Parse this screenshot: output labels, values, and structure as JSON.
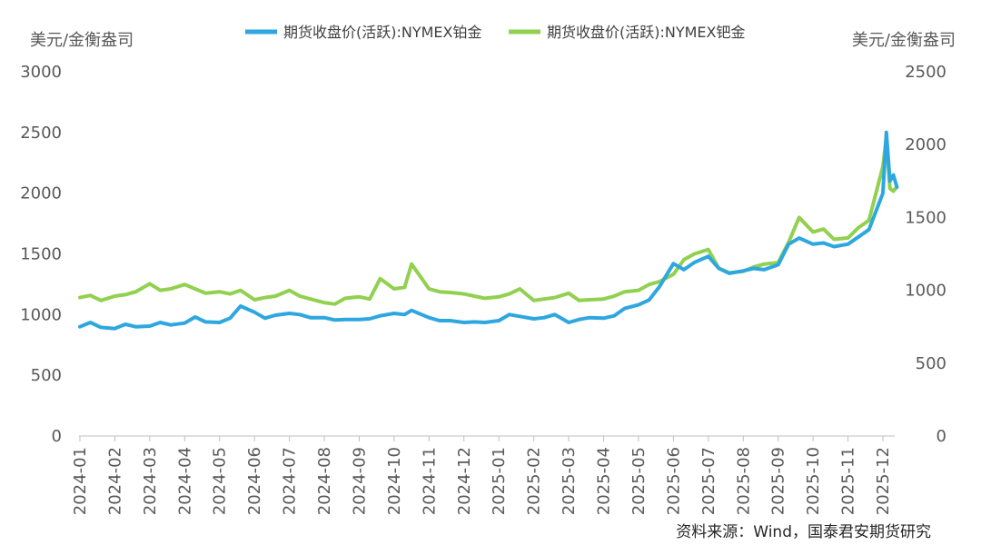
{
  "chart_data": {
    "type": "line",
    "title": "",
    "left_axis_unit": "美元/金衡盎司",
    "right_axis_unit": "美元/金衡盎司",
    "left_ylim": [
      0,
      3000
    ],
    "left_ticks": [
      "0",
      "500",
      "1000",
      "1500",
      "2000",
      "2500",
      "3000"
    ],
    "right_ylim": [
      0,
      2500
    ],
    "right_ticks": [
      "0",
      "500",
      "1000",
      "1500",
      "2000",
      "2500"
    ],
    "x_ticks": [
      "2024-01",
      "2024-02",
      "2024-03",
      "2024-04",
      "2024-05",
      "2024-06",
      "2024-07",
      "2024-08",
      "2024-09",
      "2024-10",
      "2024-11",
      "2024-12",
      "2025-01",
      "2025-02",
      "2025-03",
      "2025-04",
      "2025-05",
      "2025-06",
      "2025-07",
      "2025-08",
      "2025-09",
      "2025-10",
      "2025-11",
      "2025-12"
    ],
    "series": [
      {
        "name": "期货收盘价(活跃):NYMEX铂金",
        "axis": "left",
        "color": "#2ea7e0",
        "points": [
          [
            0,
            900
          ],
          [
            0.3,
            935
          ],
          [
            0.6,
            895
          ],
          [
            1,
            885
          ],
          [
            1.3,
            920
          ],
          [
            1.6,
            900
          ],
          [
            2,
            905
          ],
          [
            2.3,
            935
          ],
          [
            2.6,
            915
          ],
          [
            3,
            930
          ],
          [
            3.3,
            980
          ],
          [
            3.6,
            940
          ],
          [
            4,
            935
          ],
          [
            4.3,
            970
          ],
          [
            4.6,
            1070
          ],
          [
            5,
            1020
          ],
          [
            5.3,
            970
          ],
          [
            5.6,
            995
          ],
          [
            6,
            1010
          ],
          [
            6.3,
            1000
          ],
          [
            6.6,
            975
          ],
          [
            7,
            975
          ],
          [
            7.3,
            955
          ],
          [
            7.6,
            960
          ],
          [
            8,
            960
          ],
          [
            8.3,
            965
          ],
          [
            8.6,
            990
          ],
          [
            9,
            1010
          ],
          [
            9.3,
            1000
          ],
          [
            9.5,
            1035
          ],
          [
            10,
            975
          ],
          [
            10.3,
            950
          ],
          [
            10.6,
            950
          ],
          [
            11,
            935
          ],
          [
            11.3,
            940
          ],
          [
            11.6,
            935
          ],
          [
            12,
            950
          ],
          [
            12.3,
            1000
          ],
          [
            12.6,
            985
          ],
          [
            13,
            965
          ],
          [
            13.3,
            975
          ],
          [
            13.6,
            1000
          ],
          [
            14,
            935
          ],
          [
            14.3,
            960
          ],
          [
            14.6,
            975
          ],
          [
            15,
            970
          ],
          [
            15.3,
            990
          ],
          [
            15.6,
            1050
          ],
          [
            16,
            1080
          ],
          [
            16.3,
            1120
          ],
          [
            16.6,
            1230
          ],
          [
            17,
            1420
          ],
          [
            17.3,
            1370
          ],
          [
            17.6,
            1430
          ],
          [
            18,
            1480
          ],
          [
            18.3,
            1380
          ],
          [
            18.6,
            1340
          ],
          [
            19,
            1360
          ],
          [
            19.3,
            1380
          ],
          [
            19.6,
            1370
          ],
          [
            20,
            1410
          ],
          [
            20.3,
            1580
          ],
          [
            20.6,
            1630
          ],
          [
            21,
            1580
          ],
          [
            21.3,
            1590
          ],
          [
            21.6,
            1560
          ],
          [
            22,
            1580
          ],
          [
            22.3,
            1640
          ],
          [
            22.6,
            1700
          ],
          [
            23,
            2000
          ],
          [
            23.1,
            2500
          ],
          [
            23.2,
            2100
          ],
          [
            23.3,
            2150
          ],
          [
            23.4,
            2050
          ]
        ]
      },
      {
        "name": "期货收盘价(活跃):NYMEX钯金",
        "axis": "right",
        "color": "#92d050",
        "points": [
          [
            0,
            950
          ],
          [
            0.3,
            965
          ],
          [
            0.6,
            930
          ],
          [
            1,
            960
          ],
          [
            1.3,
            970
          ],
          [
            1.6,
            990
          ],
          [
            2,
            1045
          ],
          [
            2.3,
            1000
          ],
          [
            2.6,
            1010
          ],
          [
            3,
            1040
          ],
          [
            3.3,
            1010
          ],
          [
            3.6,
            980
          ],
          [
            4,
            990
          ],
          [
            4.3,
            975
          ],
          [
            4.6,
            1000
          ],
          [
            5,
            935
          ],
          [
            5.3,
            950
          ],
          [
            5.6,
            960
          ],
          [
            6,
            1000
          ],
          [
            6.3,
            960
          ],
          [
            6.6,
            940
          ],
          [
            7,
            915
          ],
          [
            7.3,
            905
          ],
          [
            7.6,
            945
          ],
          [
            8,
            955
          ],
          [
            8.3,
            940
          ],
          [
            8.6,
            1080
          ],
          [
            9,
            1010
          ],
          [
            9.3,
            1020
          ],
          [
            9.5,
            1180
          ],
          [
            10,
            1010
          ],
          [
            10.3,
            990
          ],
          [
            10.6,
            985
          ],
          [
            11,
            975
          ],
          [
            11.3,
            960
          ],
          [
            11.6,
            945
          ],
          [
            12,
            955
          ],
          [
            12.3,
            975
          ],
          [
            12.6,
            1010
          ],
          [
            13,
            930
          ],
          [
            13.3,
            940
          ],
          [
            13.6,
            950
          ],
          [
            14,
            980
          ],
          [
            14.3,
            930
          ],
          [
            14.6,
            935
          ],
          [
            15,
            940
          ],
          [
            15.3,
            960
          ],
          [
            15.6,
            990
          ],
          [
            16,
            1000
          ],
          [
            16.3,
            1040
          ],
          [
            16.6,
            1060
          ],
          [
            17,
            1110
          ],
          [
            17.3,
            1210
          ],
          [
            17.6,
            1250
          ],
          [
            18,
            1280
          ],
          [
            18.3,
            1150
          ],
          [
            18.6,
            1120
          ],
          [
            19,
            1130
          ],
          [
            19.3,
            1160
          ],
          [
            19.6,
            1180
          ],
          [
            20,
            1190
          ],
          [
            20.3,
            1330
          ],
          [
            20.6,
            1500
          ],
          [
            21,
            1400
          ],
          [
            21.3,
            1420
          ],
          [
            21.6,
            1350
          ],
          [
            22,
            1360
          ],
          [
            22.3,
            1430
          ],
          [
            22.6,
            1480
          ],
          [
            23,
            1850
          ],
          [
            23.1,
            2050
          ],
          [
            23.2,
            1700
          ],
          [
            23.3,
            1680
          ],
          [
            23.4,
            1710
          ]
        ]
      }
    ],
    "legend_position": "top",
    "grid": false
  },
  "source_text": "资料来源：Wind，国泰君安期货研究"
}
